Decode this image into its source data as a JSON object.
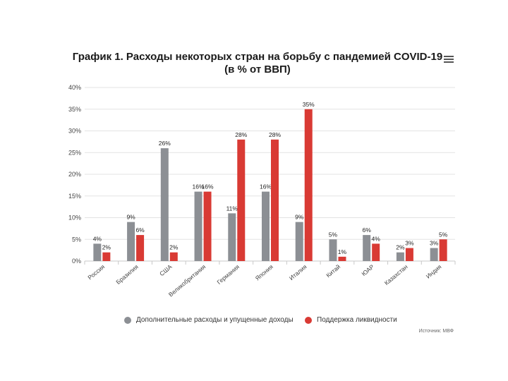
{
  "chart_data": {
    "type": "bar",
    "title": "График 1. Расходы некоторых стран на борьбу с пандемией COVID-19",
    "subtitle": "(в % от ВВП)",
    "categories": [
      "Россия",
      "Бразилия",
      "США",
      "Великобритания",
      "Германия",
      "Япония",
      "Италия",
      "Китай",
      "ЮАР",
      "Казахстан",
      "Индия"
    ],
    "series": [
      {
        "name": "Дополнительные расходы и упущенные доходы",
        "color": "#8c8f94",
        "values": [
          4,
          9,
          26,
          16,
          11,
          16,
          9,
          5,
          6,
          2,
          3
        ],
        "labels": [
          "4%",
          "9%",
          "26%",
          "16%",
          "11%",
          "16%",
          "9%",
          "5%",
          "6%",
          "2%",
          "3%"
        ]
      },
      {
        "name": "Поддержка ликвидности",
        "color": "#d93a34",
        "values": [
          2,
          6,
          2,
          16,
          28,
          28,
          35,
          1,
          4,
          3,
          5
        ],
        "labels": [
          "2%",
          "6%",
          "2%",
          "16%",
          "28%",
          "28%",
          "35%",
          "1%",
          "4%",
          "3%",
          "5%"
        ]
      }
    ],
    "y_ticks": [
      {
        "value": 0,
        "label": "0%"
      },
      {
        "value": 5,
        "label": "5%"
      },
      {
        "value": 10,
        "label": "10%"
      },
      {
        "value": 15,
        "label": "15%"
      },
      {
        "value": 20,
        "label": "20%"
      },
      {
        "value": 25,
        "label": "25%"
      },
      {
        "value": 30,
        "label": "30%"
      },
      {
        "value": 35,
        "label": "35%"
      },
      {
        "value": 40,
        "label": "40%"
      }
    ],
    "ylim": [
      0,
      40
    ],
    "grid": true,
    "legend_position": "bottom",
    "source": "Источник: МВФ"
  },
  "ui": {
    "menu_icon": "hamburger-menu-icon"
  }
}
